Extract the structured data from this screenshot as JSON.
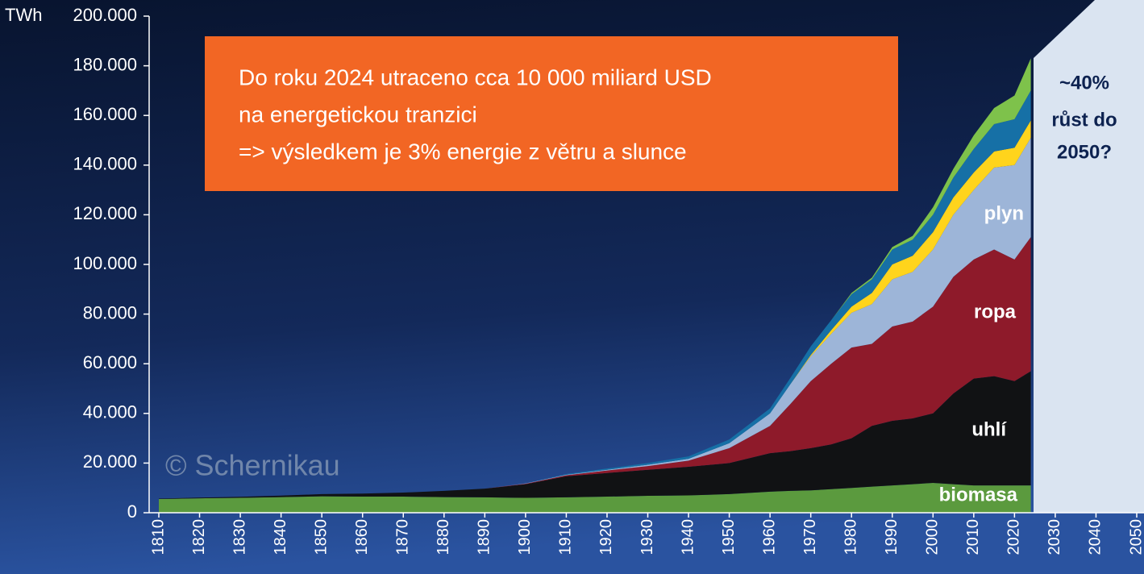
{
  "chart_data": {
    "type": "stacked_area",
    "y_label": "TWh",
    "annotations": [
      "Do roku 2024 utraceno cca 10 000 miliard USD",
      "na energetickou tranzici",
      "=> výsledkem je 3% energie z větru a slunce"
    ],
    "projection_text": [
      "~40%",
      "růst do",
      "2050?"
    ],
    "watermark": "© Schernikau",
    "x": [
      1810,
      1820,
      1830,
      1840,
      1850,
      1860,
      1870,
      1880,
      1890,
      1900,
      1910,
      1920,
      1930,
      1940,
      1950,
      1960,
      1965,
      1970,
      1975,
      1980,
      1985,
      1990,
      1995,
      2000,
      2005,
      2010,
      2015,
      2020,
      2024
    ],
    "series": [
      {
        "name": "biomasa",
        "color": "#5b9a3e",
        "values": [
          5500,
          5800,
          6000,
          6300,
          6600,
          6500,
          6500,
          6300,
          6200,
          6000,
          6200,
          6500,
          6800,
          7000,
          7500,
          8500,
          8800,
          9000,
          9500,
          10000,
          10500,
          11000,
          11500,
          12000,
          11500,
          11000,
          11000,
          11000,
          11000
        ]
      },
      {
        "name": "uhlí",
        "color": "#111214",
        "values": [
          200,
          300,
          400,
          600,
          900,
          1200,
          1600,
          2500,
          3500,
          5500,
          8500,
          9500,
          10500,
          11500,
          12500,
          15500,
          16000,
          17000,
          18000,
          20000,
          24500,
          26000,
          26500,
          28000,
          36500,
          43000,
          44000,
          42000,
          46000
        ]
      },
      {
        "name": "ropa",
        "color": "#8e1a2a",
        "values": [
          0,
          0,
          0,
          0,
          0,
          0,
          0,
          0,
          0,
          200,
          400,
          1000,
          1500,
          2500,
          6000,
          11000,
          19000,
          27000,
          32500,
          36500,
          33000,
          38000,
          39000,
          43000,
          47000,
          48000,
          51000,
          49000,
          54000
        ]
      },
      {
        "name": "plyn",
        "color": "#9db5d8",
        "values": [
          0,
          0,
          0,
          0,
          0,
          0,
          0,
          0,
          0,
          100,
          200,
          300,
          500,
          700,
          2000,
          5000,
          8000,
          10000,
          12000,
          14000,
          16000,
          19000,
          20000,
          23000,
          25000,
          28000,
          33000,
          38000,
          40000
        ]
      },
      {
        "color": "#ffd41c",
        "values": [
          0,
          0,
          0,
          0,
          0,
          0,
          0,
          0,
          0,
          0,
          0,
          0,
          0,
          0,
          0,
          0,
          0,
          500,
          1500,
          2500,
          4500,
          6000,
          6500,
          7000,
          7000,
          7000,
          6500,
          7000,
          7000
        ]
      },
      {
        "color": "#1670a6",
        "values": [
          0,
          0,
          0,
          0,
          0,
          0,
          0,
          0,
          0,
          0,
          300,
          500,
          700,
          1000,
          1500,
          2000,
          2500,
          3500,
          4000,
          5000,
          5500,
          6000,
          6500,
          7000,
          8000,
          9500,
          11000,
          11500,
          12000
        ]
      },
      {
        "color": "#7ec24b",
        "values": [
          0,
          0,
          0,
          0,
          0,
          0,
          0,
          0,
          0,
          0,
          0,
          0,
          0,
          0,
          0,
          0,
          0,
          0,
          0,
          500,
          700,
          1000,
          1500,
          3000,
          3500,
          5500,
          6500,
          9500,
          13000
        ]
      }
    ],
    "xlim": [
      1810,
      2050
    ],
    "xticks": [
      1810,
      1820,
      1830,
      1840,
      1850,
      1860,
      1870,
      1880,
      1890,
      1900,
      1910,
      1920,
      1930,
      1940,
      1950,
      1960,
      1970,
      1980,
      1990,
      2000,
      2010,
      2020,
      2030,
      2040,
      2050
    ],
    "ylim": [
      0,
      200000
    ],
    "yticks": [
      {
        "value": 0,
        "label": "0"
      },
      {
        "value": 20000,
        "label": "20.000"
      },
      {
        "value": 40000,
        "label": "40.000"
      },
      {
        "value": 60000,
        "label": "60.000"
      },
      {
        "value": 80000,
        "label": "80.000"
      },
      {
        "value": 100000,
        "label": "100.000"
      },
      {
        "value": 120000,
        "label": "120.000"
      },
      {
        "value": 140000,
        "label": "140.000"
      },
      {
        "value": 160000,
        "label": "160.000"
      },
      {
        "value": 180000,
        "label": "180.000"
      },
      {
        "value": 200000,
        "label": "200.000"
      }
    ]
  }
}
